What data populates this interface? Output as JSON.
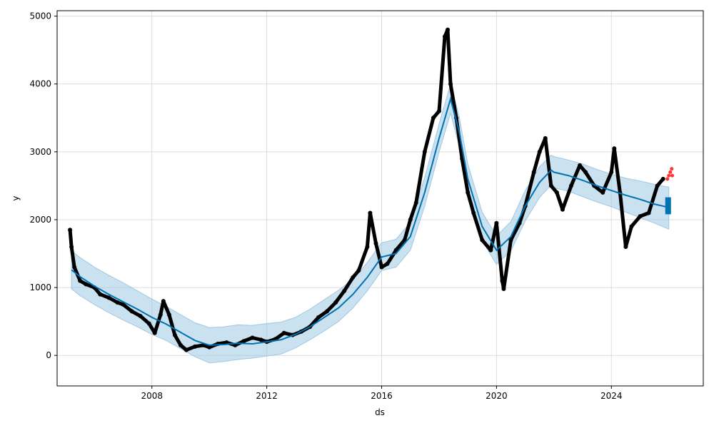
{
  "chart_data": {
    "type": "line",
    "title": "",
    "xlabel": "ds",
    "ylabel": "y",
    "xlim": [
      2004.7,
      2027.2
    ],
    "ylim": [
      -450,
      5080
    ],
    "grid": true,
    "x_ticks": [
      2008,
      2012,
      2016,
      2020,
      2024
    ],
    "x_tick_labels": [
      "2008",
      "2012",
      "2016",
      "2020",
      "2024"
    ],
    "y_ticks": [
      0,
      1000,
      2000,
      3000,
      4000,
      5000
    ],
    "y_tick_labels": [
      "0",
      "1000",
      "2000",
      "3000",
      "4000",
      "5000"
    ],
    "colors": {
      "observed": "#000000",
      "forecast": "#0072B2",
      "interval": "#9fc8e3",
      "recent_actual": "#ff0000",
      "grid": "#dcdcdc"
    },
    "series": [
      {
        "kind": "forecast",
        "x": [
          2005.2,
          2005.5,
          2006.0,
          2006.5,
          2007.0,
          2007.5,
          2008.0,
          2008.5,
          2009.0,
          2009.5,
          2010.0,
          2010.5,
          2011.0,
          2011.5,
          2012.0,
          2012.5,
          2013.0,
          2013.5,
          2014.0,
          2014.5,
          2015.0,
          2015.5,
          2016.0,
          2016.5,
          2017.0,
          2017.5,
          2018.0,
          2018.4,
          2018.7,
          2019.0,
          2019.5,
          2020.0,
          2020.5,
          2021.0,
          2021.5,
          2021.9,
          2022.0,
          2022.5,
          2023.0,
          2023.5,
          2024.0,
          2024.5,
          2025.0,
          2025.5,
          2026.0
        ],
        "y": [
          1260,
          1160,
          1020,
          900,
          790,
          680,
          560,
          460,
          340,
          220,
          150,
          160,
          180,
          170,
          200,
          230,
          310,
          420,
          560,
          700,
          900,
          1150,
          1450,
          1500,
          1750,
          2400,
          3200,
          3780,
          3300,
          2600,
          1900,
          1550,
          1750,
          2200,
          2550,
          2730,
          2700,
          2650,
          2580,
          2500,
          2430,
          2360,
          2300,
          2230,
          2180
        ],
        "lower": [
          980,
          880,
          750,
          630,
          520,
          420,
          310,
          220,
          100,
          -20,
          -110,
          -90,
          -60,
          -40,
          -10,
          20,
          110,
          230,
          360,
          500,
          700,
          950,
          1250,
          1300,
          1550,
          2200,
          3000,
          3570,
          3090,
          2390,
          1690,
          1340,
          1540,
          1980,
          2330,
          2510,
          2470,
          2420,
          2340,
          2260,
          2190,
          2110,
          2030,
          1950,
          1860
        ],
        "upper": [
          1540,
          1440,
          1300,
          1180,
          1070,
          950,
          830,
          720,
          600,
          480,
          410,
          420,
          450,
          440,
          470,
          490,
          560,
          680,
          820,
          960,
          1120,
          1370,
          1660,
          1710,
          1960,
          2620,
          3410,
          4000,
          3520,
          2820,
          2110,
          1760,
          1970,
          2430,
          2780,
          2950,
          2930,
          2880,
          2820,
          2740,
          2670,
          2610,
          2570,
          2520,
          2480
        ]
      },
      {
        "kind": "observed",
        "x": [
          2005.15,
          2005.2,
          2005.3,
          2005.5,
          2005.7,
          2006.0,
          2006.2,
          2006.5,
          2006.8,
          2007.0,
          2007.3,
          2007.6,
          2007.9,
          2008.1,
          2008.3,
          2008.4,
          2008.6,
          2008.8,
          2009.0,
          2009.2,
          2009.5,
          2009.8,
          2010.0,
          2010.3,
          2010.6,
          2010.9,
          2011.2,
          2011.5,
          2011.8,
          2012.0,
          2012.3,
          2012.6,
          2012.9,
          2013.2,
          2013.5,
          2013.8,
          2014.1,
          2014.4,
          2014.7,
          2015.0,
          2015.2,
          2015.5,
          2015.6,
          2015.8,
          2016.0,
          2016.2,
          2016.5,
          2016.8,
          2017.0,
          2017.2,
          2017.5,
          2017.8,
          2018.0,
          2018.2,
          2018.3,
          2018.4,
          2018.6,
          2018.8,
          2019.0,
          2019.2,
          2019.5,
          2019.8,
          2020.0,
          2020.2,
          2020.25,
          2020.5,
          2020.8,
          2021.0,
          2021.3,
          2021.5,
          2021.7,
          2021.9,
          2022.1,
          2022.3,
          2022.6,
          2022.9,
          2023.1,
          2023.4,
          2023.7,
          2024.0,
          2024.1,
          2024.3,
          2024.5,
          2024.7,
          2025.0,
          2025.3,
          2025.6,
          2025.8
        ],
        "y": [
          1850,
          1600,
          1300,
          1100,
          1050,
          1000,
          900,
          850,
          780,
          750,
          650,
          580,
          470,
          330,
          600,
          800,
          600,
          300,
          150,
          80,
          130,
          150,
          120,
          170,
          190,
          150,
          210,
          260,
          230,
          200,
          240,
          330,
          300,
          350,
          420,
          560,
          650,
          780,
          950,
          1150,
          1250,
          1600,
          2100,
          1650,
          1300,
          1350,
          1550,
          1700,
          2000,
          2250,
          3000,
          3500,
          3600,
          4700,
          4800,
          4000,
          3500,
          2900,
          2400,
          2100,
          1700,
          1550,
          1950,
          1100,
          980,
          1700,
          1950,
          2200,
          2700,
          3000,
          3200,
          2500,
          2400,
          2150,
          2500,
          2800,
          2700,
          2500,
          2400,
          2700,
          3050,
          2400,
          1600,
          1900,
          2050,
          2100,
          2500,
          2600
        ]
      },
      {
        "kind": "recent_actual",
        "x": [
          2025.95,
          2026.0,
          2026.05,
          2026.1,
          2026.12
        ],
        "y": [
          2600,
          2650,
          2700,
          2750,
          2650
        ]
      }
    ]
  }
}
